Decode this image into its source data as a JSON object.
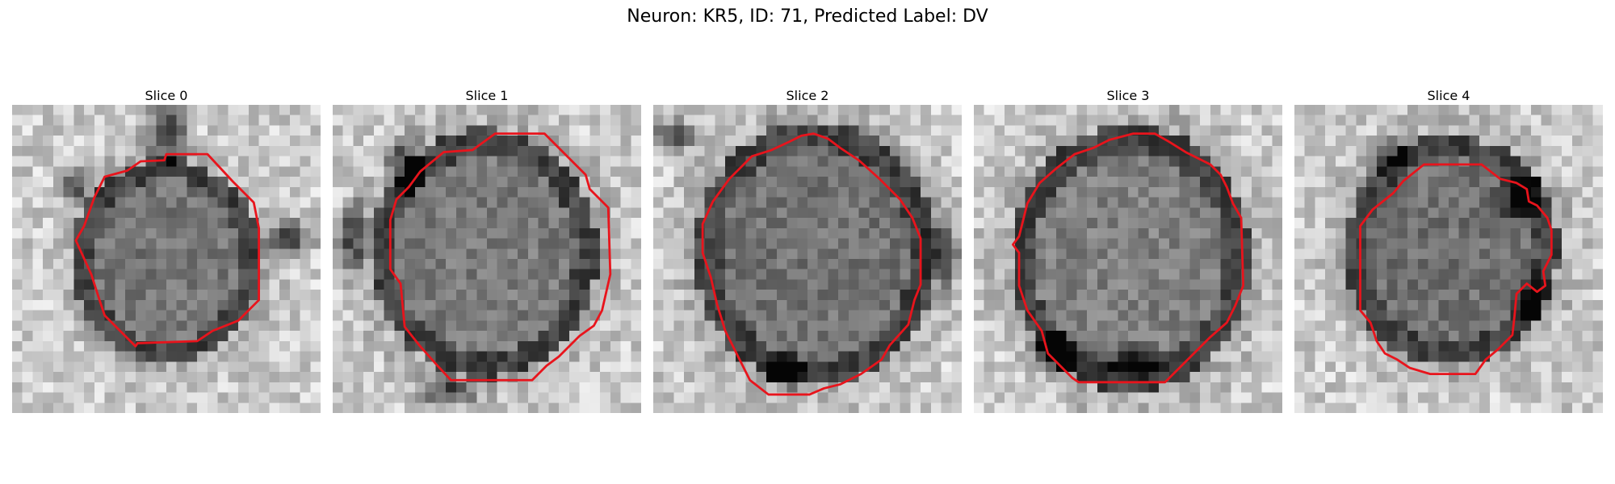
{
  "figure": {
    "title": "Neuron: KR5, ID: 71, Predicted Label: DV"
  },
  "colors": {
    "contour": "#e8141c",
    "background": "#ffffff"
  },
  "panels": [
    {
      "label": "Slice 0"
    },
    {
      "label": "Slice 1"
    },
    {
      "label": "Slice 2"
    },
    {
      "label": "Slice 3"
    },
    {
      "label": "Slice 4"
    }
  ]
}
